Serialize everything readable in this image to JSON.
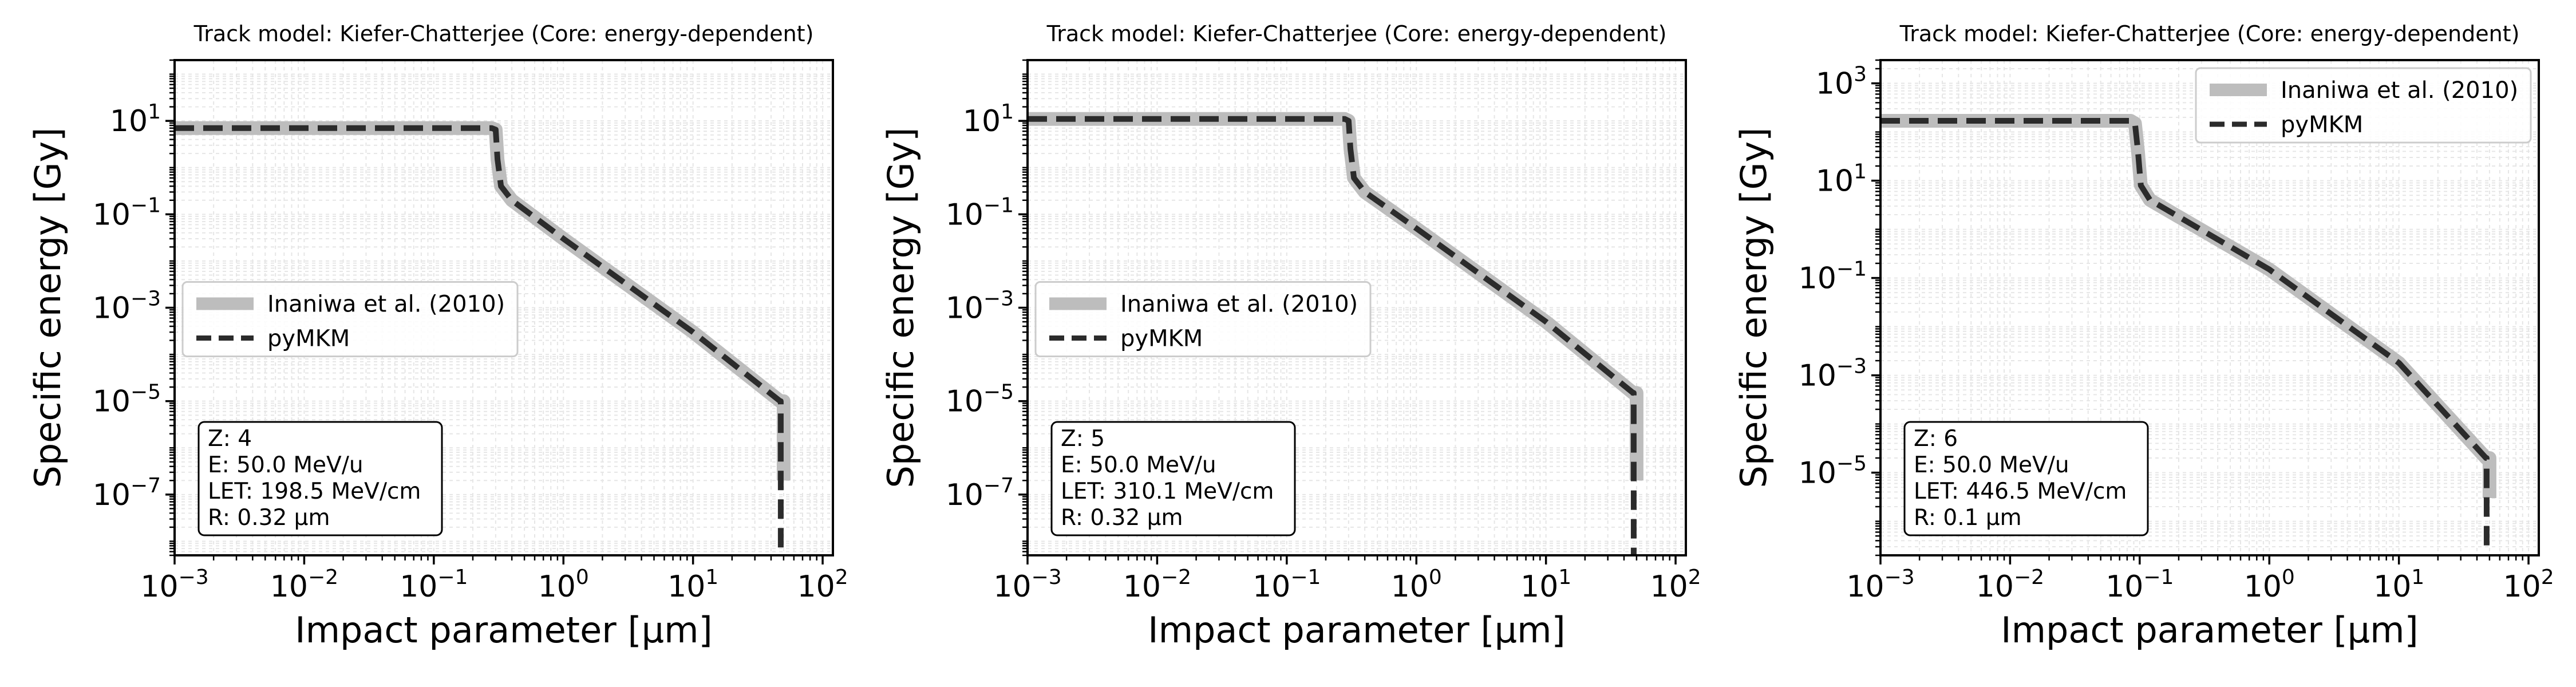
{
  "figure": {
    "background": "#ffffff"
  },
  "styles": {
    "reference_color": "#bdbdbd",
    "model_color": "#2b2b2b",
    "grid_color": "#e6e6e6"
  },
  "chart_data": [
    {
      "type": "line",
      "title": "Track model: Kiefer-Chatterjee (Core: energy-dependent)",
      "xlabel": "Impact parameter [μm]",
      "ylabel": "Specific energy [Gy]",
      "xscale": "log",
      "yscale": "log",
      "xlim": [
        0.001,
        120
      ],
      "ylim": [
        5e-09,
        200
      ],
      "xticks": [
        {
          "value": 0.001,
          "base": "10",
          "exp": "−3"
        },
        {
          "value": 0.01,
          "base": "10",
          "exp": "−2"
        },
        {
          "value": 0.1,
          "base": "10",
          "exp": "−1"
        },
        {
          "value": 1,
          "base": "10",
          "exp": "0"
        },
        {
          "value": 10,
          "base": "10",
          "exp": "1"
        },
        {
          "value": 100,
          "base": "10",
          "exp": "2"
        }
      ],
      "yticks": [
        {
          "value": 1e-07,
          "base": "10",
          "exp": "−7"
        },
        {
          "value": 1e-05,
          "base": "10",
          "exp": "−5"
        },
        {
          "value": 0.001,
          "base": "10",
          "exp": "−3"
        },
        {
          "value": 0.1,
          "base": "10",
          "exp": "−1"
        },
        {
          "value": 10,
          "base": "10",
          "exp": "1"
        }
      ],
      "grid": true,
      "legend": {
        "position": "center-left",
        "entries": [
          {
            "label": "Inaniwa et al. (2010)",
            "style": "reference"
          },
          {
            "label": "pyMKM",
            "style": "model"
          }
        ]
      },
      "annotation": {
        "position": "bottom-left",
        "lines": [
          "Z: 4",
          "E: 50.0 MeV/u",
          "LET: 198.5 MeV/cm",
          "R: 0.32 μm"
        ]
      },
      "series": [
        {
          "name": "Inaniwa et al. (2010)",
          "style": "reference",
          "points": [
            [
              0.001,
              7.0
            ],
            [
              0.28,
              7.0
            ],
            [
              0.3,
              6.5
            ],
            [
              0.31,
              1.5
            ],
            [
              0.33,
              0.4
            ],
            [
              0.4,
              0.2
            ],
            [
              1,
              0.03
            ],
            [
              10,
              0.0003
            ],
            [
              47,
              1e-05
            ],
            [
              50,
              1e-05
            ],
            [
              50,
              2e-07
            ]
          ]
        },
        {
          "name": "pyMKM",
          "style": "model",
          "points": [
            [
              0.001,
              7.0
            ],
            [
              0.28,
              7.0
            ],
            [
              0.3,
              6.5
            ],
            [
              0.31,
              1.5
            ],
            [
              0.33,
              0.4
            ],
            [
              0.4,
              0.2
            ],
            [
              1,
              0.03
            ],
            [
              10,
              0.0003
            ],
            [
              47,
              1e-05
            ],
            [
              47.5,
              1e-05
            ],
            [
              47.5,
              5e-09
            ]
          ]
        }
      ]
    },
    {
      "type": "line",
      "title": "Track model: Kiefer-Chatterjee (Core: energy-dependent)",
      "xlabel": "Impact parameter [μm]",
      "ylabel": "Specific energy [Gy]",
      "xscale": "log",
      "yscale": "log",
      "xlim": [
        0.001,
        120
      ],
      "ylim": [
        5e-09,
        200
      ],
      "xticks": [
        {
          "value": 0.001,
          "base": "10",
          "exp": "−3"
        },
        {
          "value": 0.01,
          "base": "10",
          "exp": "−2"
        },
        {
          "value": 0.1,
          "base": "10",
          "exp": "−1"
        },
        {
          "value": 1,
          "base": "10",
          "exp": "0"
        },
        {
          "value": 10,
          "base": "10",
          "exp": "1"
        },
        {
          "value": 100,
          "base": "10",
          "exp": "2"
        }
      ],
      "yticks": [
        {
          "value": 1e-07,
          "base": "10",
          "exp": "−7"
        },
        {
          "value": 1e-05,
          "base": "10",
          "exp": "−5"
        },
        {
          "value": 0.001,
          "base": "10",
          "exp": "−3"
        },
        {
          "value": 0.1,
          "base": "10",
          "exp": "−1"
        },
        {
          "value": 10,
          "base": "10",
          "exp": "1"
        }
      ],
      "grid": true,
      "legend": {
        "position": "center-left",
        "entries": [
          {
            "label": "Inaniwa et al. (2010)",
            "style": "reference"
          },
          {
            "label": "pyMKM",
            "style": "model"
          }
        ]
      },
      "annotation": {
        "position": "bottom-left",
        "lines": [
          "Z: 5",
          "E: 50.0 MeV/u",
          "LET: 310.1 MeV/cm",
          "R: 0.32 μm"
        ]
      },
      "series": [
        {
          "name": "Inaniwa et al. (2010)",
          "style": "reference",
          "points": [
            [
              0.001,
              11.0
            ],
            [
              0.28,
              11.0
            ],
            [
              0.3,
              10.0
            ],
            [
              0.31,
              2.5
            ],
            [
              0.33,
              0.6
            ],
            [
              0.4,
              0.3
            ],
            [
              1,
              0.05
            ],
            [
              10,
              0.0005
            ],
            [
              47,
              1.5e-05
            ],
            [
              50,
              1.5e-05
            ],
            [
              50,
              2e-07
            ]
          ]
        },
        {
          "name": "pyMKM",
          "style": "model",
          "points": [
            [
              0.001,
              11.0
            ],
            [
              0.28,
              11.0
            ],
            [
              0.3,
              10.0
            ],
            [
              0.31,
              2.5
            ],
            [
              0.33,
              0.6
            ],
            [
              0.4,
              0.3
            ],
            [
              1,
              0.05
            ],
            [
              10,
              0.0005
            ],
            [
              47,
              1.5e-05
            ],
            [
              47.5,
              1.5e-05
            ],
            [
              47.5,
              5e-09
            ]
          ]
        }
      ]
    },
    {
      "type": "line",
      "title": "Track model: Kiefer-Chatterjee (Core: energy-dependent)",
      "xlabel": "Impact parameter [μm]",
      "ylabel": "Specific energy [Gy]",
      "xscale": "log",
      "yscale": "log",
      "xlim": [
        0.001,
        120
      ],
      "ylim": [
        2e-07,
        3000
      ],
      "xticks": [
        {
          "value": 0.001,
          "base": "10",
          "exp": "−3"
        },
        {
          "value": 0.01,
          "base": "10",
          "exp": "−2"
        },
        {
          "value": 0.1,
          "base": "10",
          "exp": "−1"
        },
        {
          "value": 1,
          "base": "10",
          "exp": "0"
        },
        {
          "value": 10,
          "base": "10",
          "exp": "1"
        },
        {
          "value": 100,
          "base": "10",
          "exp": "2"
        }
      ],
      "yticks": [
        {
          "value": 1e-05,
          "base": "10",
          "exp": "−5"
        },
        {
          "value": 0.001,
          "base": "10",
          "exp": "−3"
        },
        {
          "value": 0.1,
          "base": "10",
          "exp": "−1"
        },
        {
          "value": 10,
          "base": "10",
          "exp": "1"
        },
        {
          "value": 1000,
          "base": "10",
          "exp": "3"
        }
      ],
      "grid": true,
      "legend": {
        "position": "top-right",
        "entries": [
          {
            "label": "Inaniwa et al. (2010)",
            "style": "reference"
          },
          {
            "label": "pyMKM",
            "style": "model"
          }
        ]
      },
      "annotation": {
        "position": "bottom-left",
        "lines": [
          "Z: 6",
          "E: 50.0 MeV/u",
          "LET: 446.5 MeV/cm",
          "R: 0.1 μm"
        ]
      },
      "series": [
        {
          "name": "Inaniwa et al. (2010)",
          "style": "reference",
          "points": [
            [
              0.001,
              170
            ],
            [
              0.085,
              170
            ],
            [
              0.092,
              150
            ],
            [
              0.097,
              40
            ],
            [
              0.102,
              8
            ],
            [
              0.12,
              4
            ],
            [
              1,
              0.15
            ],
            [
              10,
              0.0018
            ],
            [
              47,
              2e-05
            ],
            [
              50,
              2e-05
            ],
            [
              50,
              3e-06
            ]
          ]
        },
        {
          "name": "pyMKM",
          "style": "model",
          "points": [
            [
              0.001,
              170
            ],
            [
              0.085,
              170
            ],
            [
              0.092,
              150
            ],
            [
              0.097,
              40
            ],
            [
              0.102,
              8
            ],
            [
              0.12,
              4
            ],
            [
              1,
              0.15
            ],
            [
              10,
              0.0018
            ],
            [
              47,
              2e-05
            ],
            [
              47.5,
              2e-05
            ],
            [
              47.5,
              2e-07
            ]
          ]
        }
      ]
    }
  ]
}
